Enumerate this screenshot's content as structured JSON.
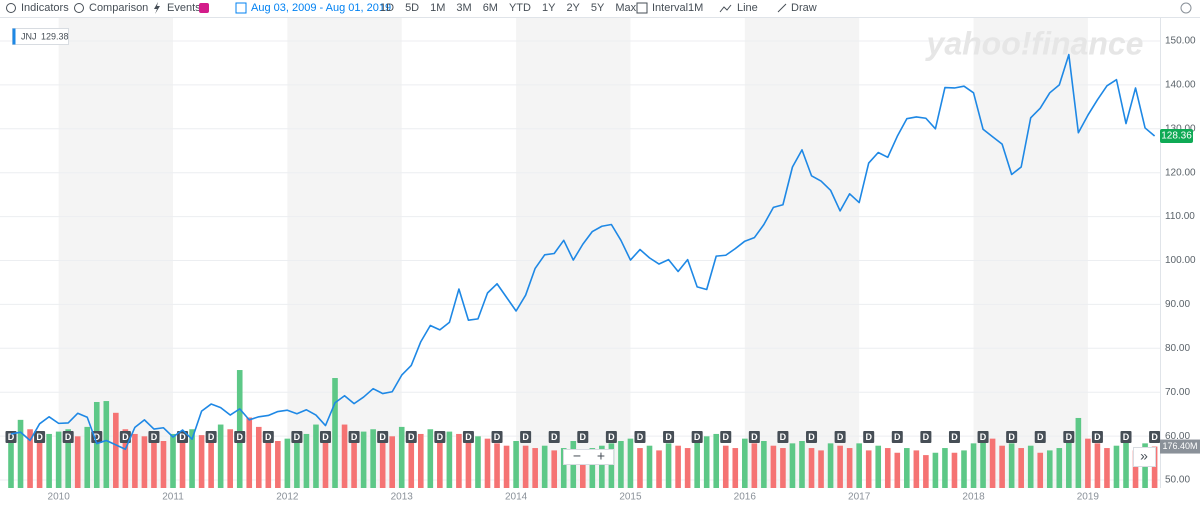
{
  "toolbar": {
    "indicators": "Indicators",
    "comparison": "Comparison",
    "events": "Events",
    "date_range": "Aug 03, 2009 - Aug 01, 2019",
    "ranges": [
      "1D",
      "5D",
      "1M",
      "3M",
      "6M",
      "YTD",
      "1Y",
      "2Y",
      "5Y",
      "Max"
    ],
    "interval_label": "Interval",
    "interval_value": "1M",
    "chart_style": "Line",
    "draw": "Draw"
  },
  "watermark": "yahoo!finance",
  "events": {
    "dividend_label": "D"
  },
  "controls": {
    "zoom_out": "−",
    "zoom_in": "+",
    "scroll": "»"
  },
  "chart_data": {
    "type": "line",
    "categories": [
      null,
      null,
      null,
      null,
      null,
      "2010",
      null,
      null,
      null,
      null,
      null,
      null,
      null,
      null,
      null,
      null,
      null,
      "2011",
      null,
      null,
      null,
      null,
      null,
      null,
      null,
      null,
      null,
      null,
      null,
      "2012",
      null,
      null,
      null,
      null,
      null,
      null,
      null,
      null,
      null,
      null,
      null,
      "2013",
      null,
      null,
      null,
      null,
      null,
      null,
      null,
      null,
      null,
      null,
      null,
      "2014",
      null,
      null,
      null,
      null,
      null,
      null,
      null,
      null,
      null,
      null,
      null,
      "2015",
      null,
      null,
      null,
      null,
      null,
      null,
      null,
      null,
      null,
      null,
      null,
      "2016",
      null,
      null,
      null,
      null,
      null,
      null,
      null,
      null,
      null,
      null,
      null,
      "2017",
      null,
      null,
      null,
      null,
      null,
      null,
      null,
      null,
      null,
      null,
      null,
      "2018",
      null,
      null,
      null,
      null,
      null,
      null,
      null,
      null,
      null,
      null,
      null,
      "2019",
      null,
      null,
      null,
      null,
      null,
      null,
      null
    ],
    "series": [
      {
        "name": "JNJ",
        "color": "#1e88e5",
        "values": [
          60.5,
          60.9,
          59,
          62.8,
          64.4,
          62.9,
          63,
          65.2,
          64.3,
          58.3,
          59,
          58,
          57,
          62,
          63.7,
          61.6,
          61.9,
          59.8,
          61.4,
          59.3,
          65.7,
          67.3,
          66.5,
          64.8,
          66.2,
          63.7,
          64.4,
          64.7,
          65.6,
          65.9,
          65.1,
          66,
          64.8,
          62.4,
          67.6,
          69.2,
          67.4,
          68.9,
          70.8,
          69.7,
          70.1,
          73.9,
          76.1,
          81.5,
          85.2,
          84.2,
          85.9,
          93.5,
          86.4,
          86.7,
          92.6,
          94.7,
          91.6,
          88.5,
          92.1,
          98.2,
          101.3,
          101.6,
          104.6,
          100.1,
          103.7,
          106.6,
          107.8,
          108.2,
          104.6,
          100.1,
          102.5,
          100.6,
          99.2,
          100.2,
          97.5,
          100.2,
          94,
          93.4,
          101,
          101.2,
          102.7,
          104.4,
          105.2,
          108.2,
          112.1,
          112.7,
          121.3,
          125.2,
          119.3,
          118.1,
          116,
          111.3,
          115.2,
          113.2,
          122.2,
          124.6,
          123.5,
          128.3,
          132.3,
          132.7,
          132.4,
          130,
          139.4,
          139.3,
          139.7,
          138.2,
          129.9,
          128.2,
          126.5,
          119.6,
          121.3,
          132.5,
          134.7,
          138.2,
          140,
          146.9,
          129.1,
          133.1,
          136.6,
          139.8,
          141.2,
          131.2,
          139.3,
          130.2,
          128.36
        ]
      }
    ],
    "legend_value": 129.38,
    "last_price": 128.36,
    "ylim": [
      48.18,
      155.24
    ],
    "yticks": [
      {
        "value": 50,
        "label": "50.00"
      },
      {
        "value": 60,
        "label": "60.00"
      },
      {
        "value": 70,
        "label": "70.00"
      },
      {
        "value": 80,
        "label": "80.00"
      },
      {
        "value": 90,
        "label": "90.00"
      },
      {
        "value": 100,
        "label": "100.00"
      },
      {
        "value": 110,
        "label": "110.00"
      },
      {
        "value": 120,
        "label": "120.00"
      },
      {
        "value": 130,
        "label": "130.00"
      },
      {
        "value": 140,
        "label": "140.00"
      },
      {
        "value": 150,
        "label": "150.00"
      }
    ],
    "grid": true,
    "volume": {
      "up_color": "#5dc887",
      "down_color": "#f57373",
      "vlim": [
        0,
        2000
      ],
      "last_label": "176.40M",
      "values": [
        205,
        290,
        250,
        210,
        230,
        240,
        250,
        220,
        260,
        366,
        370,
        320,
        250,
        230,
        220,
        210,
        200,
        230,
        215,
        250,
        225,
        210,
        270,
        250,
        502,
        300,
        260,
        240,
        200,
        210,
        220,
        230,
        270,
        240,
        468,
        270,
        230,
        240,
        250,
        230,
        220,
        260,
        240,
        230,
        250,
        220,
        240,
        230,
        200,
        220,
        210,
        190,
        180,
        200,
        180,
        170,
        180,
        160,
        170,
        200,
        150,
        170,
        180,
        190,
        200,
        210,
        170,
        180,
        160,
        190,
        180,
        170,
        200,
        220,
        230,
        180,
        170,
        210,
        190,
        200,
        180,
        170,
        190,
        200,
        170,
        160,
        190,
        180,
        170,
        190,
        160,
        180,
        170,
        150,
        170,
        160,
        140,
        150,
        170,
        150,
        160,
        190,
        220,
        210,
        180,
        190,
        170,
        180,
        150,
        160,
        170,
        230,
        298,
        210,
        190,
        170,
        180,
        200,
        160,
        190,
        176.4
      ]
    }
  }
}
